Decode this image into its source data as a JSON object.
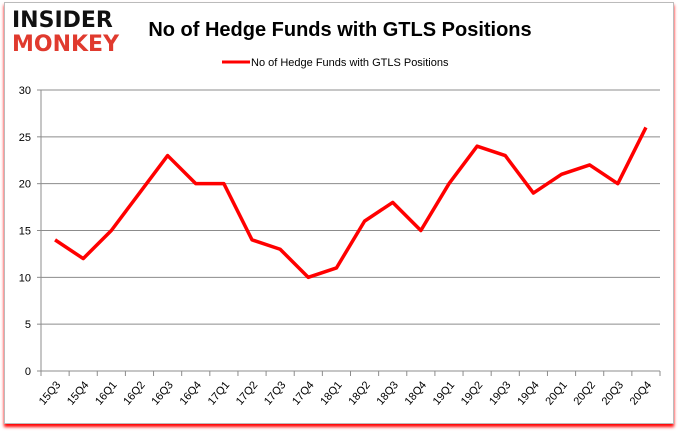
{
  "logo": {
    "line1": "INSIDER",
    "line2": "MONKEY"
  },
  "chart_data": {
    "type": "line",
    "title": "No of Hedge Funds with GTLS Positions",
    "categories": [
      "15Q3",
      "15Q4",
      "16Q1",
      "16Q2",
      "16Q3",
      "16Q4",
      "17Q1",
      "17Q2",
      "17Q3",
      "17Q4",
      "18Q1",
      "18Q2",
      "18Q3",
      "18Q4",
      "19Q1",
      "19Q2",
      "19Q3",
      "19Q4",
      "20Q1",
      "20Q2",
      "20Q3",
      "20Q4"
    ],
    "series": [
      {
        "name": "No of Hedge Funds with GTLS Positions",
        "values": [
          14,
          12,
          15,
          19,
          23,
          20,
          20,
          14,
          13,
          10,
          11,
          16,
          18,
          15,
          20,
          24,
          23,
          19,
          21,
          22,
          20,
          26
        ],
        "color": "#ff0000"
      }
    ],
    "xlabel": "",
    "ylabel": "",
    "ylim": [
      0,
      30
    ],
    "yticks": [
      0,
      5,
      10,
      15,
      20,
      25,
      30
    ],
    "grid": true,
    "legend": "top"
  }
}
